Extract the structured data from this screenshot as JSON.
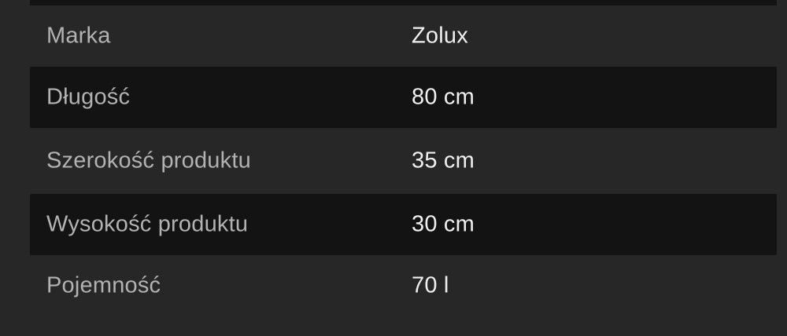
{
  "table": {
    "name": "product-specifications",
    "rows": [
      {
        "key": "brand",
        "label": "Marka",
        "value": "Zolux"
      },
      {
        "key": "length",
        "label": "Długość",
        "value": "80 cm"
      },
      {
        "key": "width",
        "label": "Szerokość produktu",
        "value": "35 cm"
      },
      {
        "key": "height",
        "label": "Wysokość produktu",
        "value": "30 cm"
      },
      {
        "key": "capacity",
        "label": "Pojemność",
        "value": "70 l"
      }
    ]
  },
  "colors": {
    "page_bg": "#272727",
    "row_highlight_bg": "#131313",
    "label_text": "#b2b2b2",
    "value_text": "#f0f0f0"
  }
}
